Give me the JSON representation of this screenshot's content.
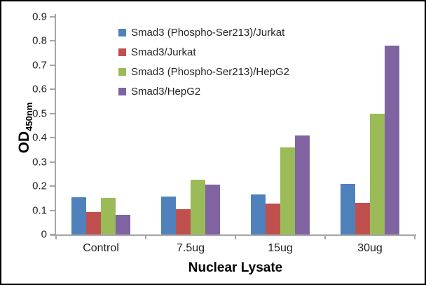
{
  "figure": {
    "background": "#ffffff",
    "border_color": "#000000"
  },
  "chart_data": {
    "type": "bar",
    "title": "",
    "categories": [
      "Control",
      "7.5ug",
      "15ug",
      "30ug"
    ],
    "series": [
      {
        "name": "Smad3 (Phospho-Ser213)/Jurkat",
        "color": "#4F81BD",
        "values": [
          0.155,
          0.156,
          0.165,
          0.21
        ]
      },
      {
        "name": "Smad3/Jurkat",
        "color": "#C0504D",
        "values": [
          0.093,
          0.104,
          0.127,
          0.132
        ]
      },
      {
        "name": "Smad3 (Phospho-Ser213)/HepG2",
        "color": "#9BBB59",
        "values": [
          0.152,
          0.227,
          0.36,
          0.5
        ]
      },
      {
        "name": "Smad3/HepG2",
        "color": "#8064A2",
        "values": [
          0.08,
          0.206,
          0.41,
          0.78
        ]
      }
    ],
    "xlabel": "Nuclear Lysate",
    "ylabel": "OD",
    "ylabel_subscript": "450nm",
    "ylim": [
      0,
      0.9
    ],
    "yticks": [
      0,
      0.1,
      0.2,
      0.3,
      0.4,
      0.5,
      0.6,
      0.7,
      0.8,
      0.9
    ],
    "ytick_labels": [
      "0",
      "0.1",
      "0.2",
      "0.3",
      "0.4",
      "0.5",
      "0.6",
      "0.7",
      "0.8",
      "0.9"
    ],
    "grid": false,
    "legend_position": "inside-top",
    "axis_color": "#A6A6A6",
    "text_color": "#1f1f1f"
  }
}
